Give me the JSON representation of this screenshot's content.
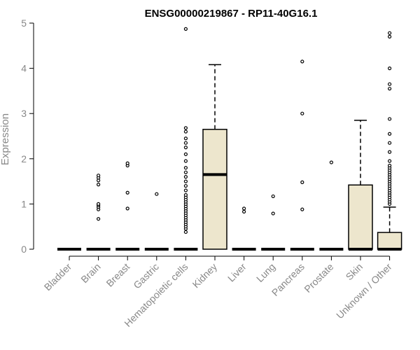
{
  "chart_data": {
    "type": "box",
    "title": "ENSG00000219867 - RP11-40G16.1",
    "ylabel": "Expression",
    "xlabel": "",
    "ylim": [
      0,
      5
    ],
    "yticks": [
      0,
      1,
      2,
      3,
      4,
      5
    ],
    "categories": [
      "Bladder",
      "Brain",
      "Breast",
      "Gastric",
      "Hematopoietic cells",
      "Kidney",
      "Liver",
      "Lung",
      "Pancreas",
      "Prostate",
      "Skin",
      "Unknown / Other"
    ],
    "box_color": "#ede6cd",
    "boxes": [
      {
        "q1": 0,
        "median": 0,
        "q3": 0,
        "whisker_low": 0,
        "whisker_high": 0,
        "outliers": []
      },
      {
        "q1": 0,
        "median": 0,
        "q3": 0,
        "whisker_low": 0,
        "whisker_high": 0,
        "outliers": [
          0.67,
          0.88,
          0.93,
          0.97,
          1.0,
          1.43,
          1.52,
          1.58,
          1.63
        ]
      },
      {
        "q1": 0,
        "median": 0,
        "q3": 0,
        "whisker_low": 0,
        "whisker_high": 0,
        "outliers": [
          0.9,
          1.25,
          1.85,
          1.9
        ]
      },
      {
        "q1": 0,
        "median": 0,
        "q3": 0,
        "whisker_low": 0,
        "whisker_high": 0,
        "outliers": [
          1.22
        ]
      },
      {
        "q1": 0,
        "median": 0,
        "q3": 0,
        "whisker_low": 0,
        "whisker_high": 0,
        "outliers": [
          0.38,
          0.45,
          0.5,
          0.55,
          0.6,
          0.65,
          0.7,
          0.75,
          0.8,
          0.85,
          0.9,
          0.95,
          1.0,
          1.05,
          1.1,
          1.15,
          1.2,
          1.3,
          1.4,
          1.5,
          1.6,
          1.7,
          1.8,
          1.95,
          2.1,
          2.25,
          2.35,
          2.45,
          2.6,
          2.68,
          4.87
        ]
      },
      {
        "q1": 0,
        "median": 1.65,
        "q3": 2.65,
        "whisker_low": 0,
        "whisker_high": 4.08,
        "outliers": []
      },
      {
        "q1": 0,
        "median": 0,
        "q3": 0,
        "whisker_low": 0,
        "whisker_high": 0,
        "outliers": [
          0.83,
          0.9
        ]
      },
      {
        "q1": 0,
        "median": 0,
        "q3": 0,
        "whisker_low": 0,
        "whisker_high": 0,
        "outliers": [
          0.79,
          1.17
        ]
      },
      {
        "q1": 0,
        "median": 0,
        "q3": 0,
        "whisker_low": 0,
        "whisker_high": 0,
        "outliers": [
          0.88,
          1.48,
          3.0,
          4.15
        ]
      },
      {
        "q1": 0,
        "median": 0,
        "q3": 0,
        "whisker_low": 0,
        "whisker_high": 0,
        "outliers": [
          1.92
        ]
      },
      {
        "q1": 0,
        "median": 0,
        "q3": 1.42,
        "whisker_low": 0,
        "whisker_high": 2.85,
        "outliers": []
      },
      {
        "q1": 0,
        "median": 0,
        "q3": 0.37,
        "whisker_low": 0,
        "whisker_high": 0.93,
        "outliers": [
          1.0,
          1.05,
          1.1,
          1.15,
          1.2,
          1.25,
          1.3,
          1.35,
          1.4,
          1.45,
          1.5,
          1.55,
          1.6,
          1.65,
          1.7,
          1.75,
          1.8,
          1.85,
          1.95,
          2.15,
          2.35,
          2.55,
          2.88,
          3.55,
          3.65,
          4.0,
          4.7,
          4.78
        ]
      }
    ]
  }
}
